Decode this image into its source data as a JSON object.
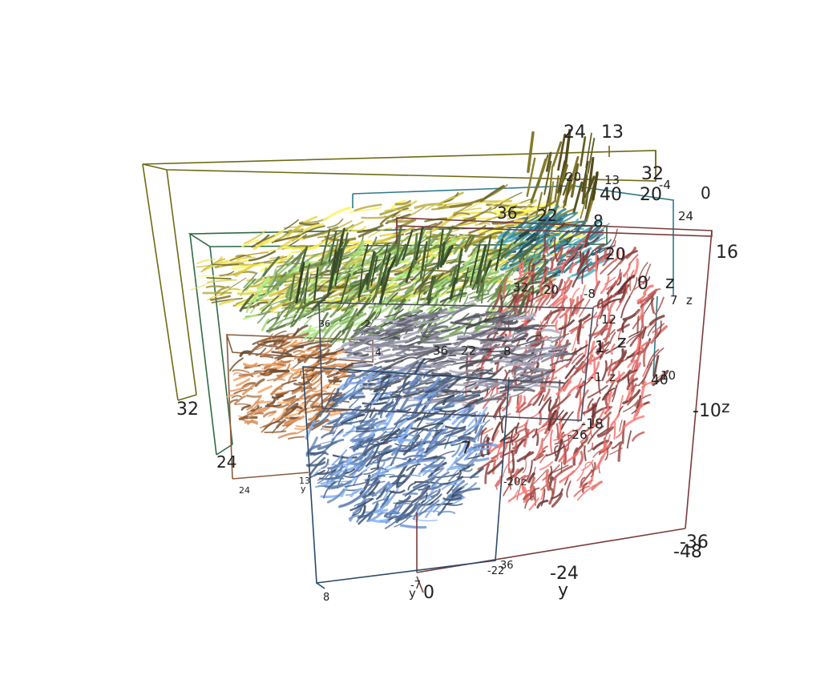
{
  "colors": {
    "yellow": "#d7c84a",
    "green": "#8fc06a",
    "teal": "#3a8da0",
    "gray": "#8a8a9c",
    "orange": "#cf8a55",
    "blue": "#6b8ec4",
    "red": "#c8605c",
    "box_yellow": "#6e6a14",
    "box_green": "#2f6a45",
    "box_teal": "#2d7a88",
    "box_gray": "#4a4a5a",
    "box_orange": "#8a5a3a",
    "box_blue": "#2a4a6a",
    "box_red": "#7a3a3a"
  },
  "bundles": [
    {
      "name": "yellow-bundle",
      "color": "yellow"
    },
    {
      "name": "teal-bundle",
      "color": "teal"
    },
    {
      "name": "green-bundle",
      "color": "green"
    },
    {
      "name": "red-bundle",
      "color": "red"
    },
    {
      "name": "gray-bundle",
      "color": "gray"
    },
    {
      "name": "orange-bundle",
      "color": "orange"
    },
    {
      "name": "blue-bundle",
      "color": "blue"
    }
  ],
  "labels": {
    "yellow_top_a": "24",
    "yellow_top_b": "13",
    "yellow_32": "32",
    "yellow_32_left": "32",
    "teal_20": "20",
    "teal_13": "13",
    "teal_40": "40",
    "teal_20b": "20",
    "teal_m4": "-4",
    "teal_24": "24",
    "teal_0": "0",
    "teal_0b": "0",
    "teal_z": "z",
    "teal_7": "7",
    "teal_z2": "z",
    "teal_40b": "40",
    "teal_10": "10",
    "red_16": "16",
    "red_m10": "-10",
    "red_z": "z",
    "red_m36": "-36",
    "red_m48": "-48",
    "red_m24": "-24",
    "red_y": "y",
    "red_0": "0",
    "red_8": "8",
    "green_36": "36",
    "green_22": "22",
    "green_20": "20",
    "green_24": "24",
    "green_32": "32",
    "green_20b": "20",
    "green_m8": "-8",
    "green_12": "12",
    "green_m18": "-18",
    "green_m26": "-26",
    "gray_1": "1",
    "gray_z": "z",
    "gray_m1": "-1",
    "gray_z2": "z",
    "gray_36": "36",
    "gray_22": "22",
    "gray_8": "8",
    "gray_4": "4",
    "gray_2": "2",
    "gray_36b": "36",
    "orange_24": "24",
    "orange_13": "13",
    "orange_y": "y",
    "blue_8": "8",
    "blue_m7": "-7",
    "blue_y": "y",
    "blue_m22": "-22",
    "blue_36": "36",
    "blue_m20": "-20",
    "blue_z": "z",
    "blue_7": "7"
  }
}
